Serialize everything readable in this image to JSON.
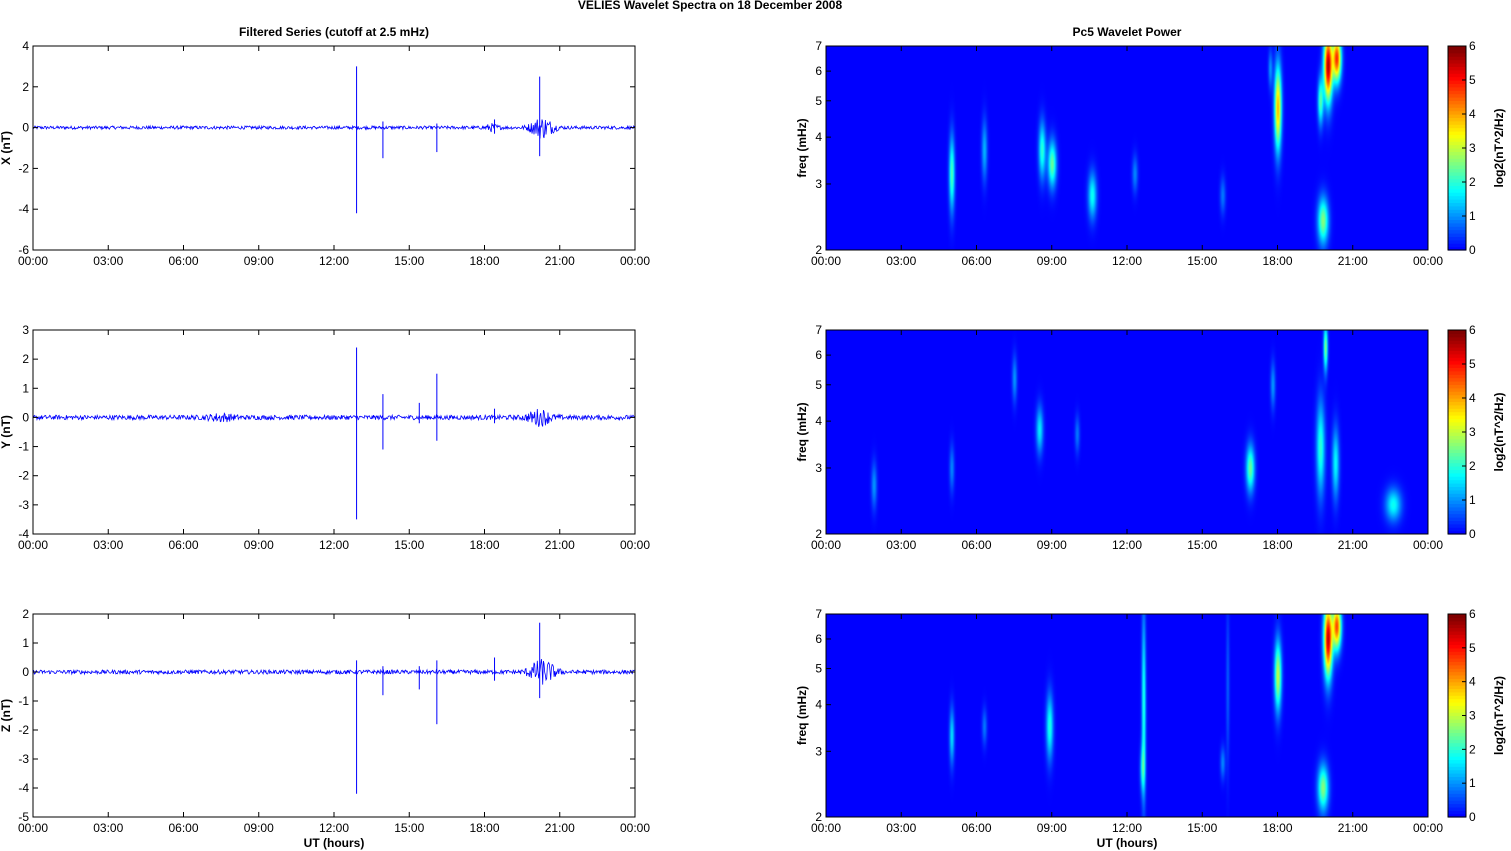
{
  "figure_title": "VELIES Wavelet Spectra on 18 December  2008",
  "left_title": "Filtered Series (cutoff at 2.5 mHz)",
  "right_title": "Pc5 Wavelet Power",
  "time_ticks": [
    "00:00",
    "03:00",
    "06:00",
    "09:00",
    "12:00",
    "15:00",
    "18:00",
    "21:00",
    "00:00"
  ],
  "x_label": "UT (hours)",
  "freq_label": "freq (mHz)",
  "freq_ticks": [
    "2",
    "3",
    "4",
    "5",
    "6",
    "7"
  ],
  "colorbar_label": "log2(nT^2/Hz)",
  "colorbar_ticks": [
    "0",
    "1",
    "2",
    "3",
    "4",
    "5",
    "6"
  ],
  "colormap": "jet",
  "line_color": "#0000ff",
  "chart_data": [
    {
      "type": "line",
      "title": "Filtered Series (cutoff at 2.5 mHz)",
      "ylabel": "X (nT)",
      "xlabel": "",
      "xlim": [
        0,
        24
      ],
      "ylim": [
        -6,
        4
      ],
      "yticks": [
        "-6",
        "-4",
        "-2",
        "0",
        "2",
        "4"
      ],
      "noise_amplitude": 0.08,
      "spikes": [
        {
          "x": 12.9,
          "ymax": 3.0,
          "ymin": -4.2
        },
        {
          "x": 13.95,
          "ymax": 0.3,
          "ymin": -1.5
        },
        {
          "x": 16.1,
          "ymax": 0.2,
          "ymin": -1.2
        },
        {
          "x": 18.4,
          "ymax": 0.4,
          "ymin": -0.3
        },
        {
          "x": 20.2,
          "ymax": 2.5,
          "ymin": -1.4
        }
      ],
      "bursts": [
        {
          "x": 20.3,
          "width": 0.45,
          "amplitude": 0.5
        },
        {
          "x": 18.3,
          "width": 0.25,
          "amplitude": 0.15
        }
      ]
    },
    {
      "type": "line",
      "title": "",
      "ylabel": "Y (nT)",
      "xlabel": "",
      "xlim": [
        0,
        24
      ],
      "ylim": [
        -4,
        3
      ],
      "yticks": [
        "-4",
        "-3",
        "-2",
        "-1",
        "0",
        "1",
        "2",
        "3"
      ],
      "noise_amplitude": 0.08,
      "spikes": [
        {
          "x": 12.9,
          "ymax": 2.4,
          "ymin": -3.5
        },
        {
          "x": 13.95,
          "ymax": 0.8,
          "ymin": -1.1
        },
        {
          "x": 15.4,
          "ymax": 0.5,
          "ymin": -0.2
        },
        {
          "x": 16.1,
          "ymax": 1.5,
          "ymin": -0.8
        },
        {
          "x": 18.4,
          "ymax": 0.3,
          "ymin": -0.2
        }
      ],
      "bursts": [
        {
          "x": 20.2,
          "width": 0.45,
          "amplitude": 0.25
        },
        {
          "x": 7.5,
          "width": 0.5,
          "amplitude": 0.1
        }
      ]
    },
    {
      "type": "line",
      "title": "",
      "ylabel": "Z (nT)",
      "xlabel": "UT (hours)",
      "xlim": [
        0,
        24
      ],
      "ylim": [
        -5,
        2
      ],
      "yticks": [
        "-5",
        "-4",
        "-3",
        "-2",
        "-1",
        "0",
        "1",
        "2"
      ],
      "noise_amplitude": 0.07,
      "spikes": [
        {
          "x": 12.9,
          "ymax": 0.4,
          "ymin": -4.2
        },
        {
          "x": 13.95,
          "ymax": 0.2,
          "ymin": -0.8
        },
        {
          "x": 15.4,
          "ymax": 0.2,
          "ymin": -0.6
        },
        {
          "x": 16.1,
          "ymax": 0.4,
          "ymin": -1.8
        },
        {
          "x": 18.4,
          "ymax": 0.5,
          "ymin": -0.3
        },
        {
          "x": 20.2,
          "ymax": 1.7,
          "ymin": -0.9
        }
      ],
      "bursts": [
        {
          "x": 20.3,
          "width": 0.5,
          "amplitude": 0.4
        }
      ]
    },
    {
      "type": "heatmap",
      "title": "Pc5 Wavelet Power",
      "ylabel": "freq (mHz)",
      "xlabel": "",
      "xlim": [
        0,
        24
      ],
      "ylim": [
        2,
        7
      ],
      "yscale": "log",
      "colorbar": {
        "label": "log2(nT^2/Hz)",
        "range": [
          0,
          6
        ]
      },
      "blobs": [
        {
          "t": 5.0,
          "f": 3.2,
          "dt": 0.08,
          "df": 0.16,
          "p": 2.2
        },
        {
          "t": 6.3,
          "f": 3.7,
          "dt": 0.08,
          "df": 0.13,
          "p": 1.2
        },
        {
          "t": 8.6,
          "f": 3.7,
          "dt": 0.1,
          "df": 0.12,
          "p": 2.0
        },
        {
          "t": 9.0,
          "f": 3.4,
          "dt": 0.12,
          "df": 0.1,
          "p": 2.4
        },
        {
          "t": 10.6,
          "f": 2.8,
          "dt": 0.12,
          "df": 0.1,
          "p": 1.8
        },
        {
          "t": 12.3,
          "f": 3.2,
          "dt": 0.08,
          "df": 0.08,
          "p": 0.9
        },
        {
          "t": 15.8,
          "f": 2.8,
          "dt": 0.08,
          "df": 0.08,
          "p": 0.8
        },
        {
          "t": 17.7,
          "f": 6.1,
          "dt": 0.06,
          "df": 0.08,
          "p": 1.0
        },
        {
          "t": 18.0,
          "f": 4.8,
          "dt": 0.1,
          "df": 0.18,
          "p": 3.9
        },
        {
          "t": 19.8,
          "f": 2.4,
          "dt": 0.15,
          "df": 0.1,
          "p": 2.6
        },
        {
          "t": 20.0,
          "f": 6.2,
          "dt": 0.12,
          "df": 0.15,
          "p": 5.6
        },
        {
          "t": 20.35,
          "f": 6.5,
          "dt": 0.12,
          "df": 0.1,
          "p": 4.8
        },
        {
          "t": 19.7,
          "f": 5.0,
          "dt": 0.08,
          "df": 0.1,
          "p": 2.2
        }
      ]
    },
    {
      "type": "heatmap",
      "title": "",
      "ylabel": "freq (mHz)",
      "xlabel": "",
      "xlim": [
        0,
        24
      ],
      "ylim": [
        2,
        7
      ],
      "yscale": "log",
      "colorbar": {
        "label": "log2(nT^2/Hz)",
        "range": [
          0,
          6
        ]
      },
      "blobs": [
        {
          "t": 1.9,
          "f": 2.7,
          "dt": 0.08,
          "df": 0.1,
          "p": 1.0
        },
        {
          "t": 5.0,
          "f": 3.0,
          "dt": 0.07,
          "df": 0.1,
          "p": 0.9
        },
        {
          "t": 7.5,
          "f": 5.2,
          "dt": 0.07,
          "df": 0.1,
          "p": 1.0
        },
        {
          "t": 8.5,
          "f": 3.8,
          "dt": 0.1,
          "df": 0.1,
          "p": 1.6
        },
        {
          "t": 10.0,
          "f": 3.7,
          "dt": 0.07,
          "df": 0.08,
          "p": 0.8
        },
        {
          "t": 16.9,
          "f": 3.0,
          "dt": 0.12,
          "df": 0.1,
          "p": 2.4
        },
        {
          "t": 17.8,
          "f": 5.0,
          "dt": 0.07,
          "df": 0.1,
          "p": 1.0
        },
        {
          "t": 19.7,
          "f": 3.4,
          "dt": 0.12,
          "df": 0.2,
          "p": 2.0
        },
        {
          "t": 19.9,
          "f": 6.3,
          "dt": 0.06,
          "df": 0.1,
          "p": 2.5
        },
        {
          "t": 20.3,
          "f": 3.1,
          "dt": 0.1,
          "df": 0.15,
          "p": 1.7
        },
        {
          "t": 22.6,
          "f": 2.4,
          "dt": 0.22,
          "df": 0.07,
          "p": 1.8
        }
      ]
    },
    {
      "type": "heatmap",
      "title": "",
      "ylabel": "freq (mHz)",
      "xlabel": "UT (hours)",
      "xlim": [
        0,
        24
      ],
      "ylim": [
        2,
        7
      ],
      "yscale": "log",
      "colorbar": {
        "label": "log2(nT^2/Hz)",
        "range": [
          0,
          6
        ]
      },
      "blobs": [
        {
          "t": 5.0,
          "f": 3.3,
          "dt": 0.07,
          "df": 0.12,
          "p": 1.5
        },
        {
          "t": 6.3,
          "f": 3.5,
          "dt": 0.07,
          "df": 0.08,
          "p": 0.8
        },
        {
          "t": 8.9,
          "f": 3.5,
          "dt": 0.1,
          "df": 0.14,
          "p": 1.9
        },
        {
          "t": 12.65,
          "f": 4.0,
          "dt": 0.06,
          "df": 0.4,
          "p": 1.9
        },
        {
          "t": 12.6,
          "f": 2.7,
          "dt": 0.07,
          "df": 0.1,
          "p": 1.4
        },
        {
          "t": 15.8,
          "f": 2.8,
          "dt": 0.07,
          "df": 0.07,
          "p": 0.9
        },
        {
          "t": 16.0,
          "f": 4.5,
          "dt": 0.05,
          "df": 0.35,
          "p": 0.6
        },
        {
          "t": 18.0,
          "f": 4.8,
          "dt": 0.1,
          "df": 0.15,
          "p": 3.0
        },
        {
          "t": 19.8,
          "f": 2.4,
          "dt": 0.15,
          "df": 0.1,
          "p": 2.6
        },
        {
          "t": 20.0,
          "f": 6.0,
          "dt": 0.12,
          "df": 0.16,
          "p": 5.5
        },
        {
          "t": 20.35,
          "f": 6.5,
          "dt": 0.12,
          "df": 0.1,
          "p": 4.6
        }
      ]
    }
  ]
}
